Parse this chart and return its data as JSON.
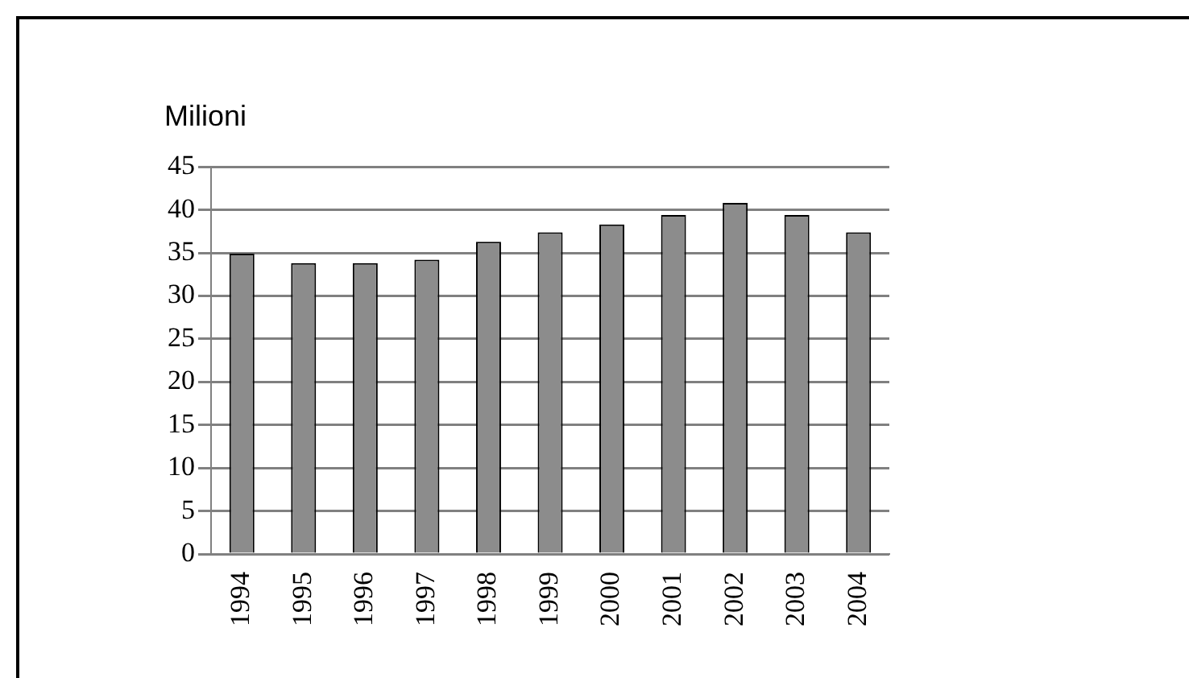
{
  "chart_data": {
    "type": "bar",
    "title": "Milioni",
    "categories": [
      "1994",
      "1995",
      "1996",
      "1997",
      "1998",
      "1999",
      "2000",
      "2001",
      "2002",
      "2003",
      "2004"
    ],
    "values": [
      34.9,
      33.8,
      33.8,
      34.2,
      36.3,
      37.4,
      38.3,
      39.4,
      40.8,
      39.4,
      37.4
    ],
    "color": "#8c8c8c",
    "ylim": [
      0,
      45
    ],
    "yticks": [
      0,
      5,
      10,
      15,
      20,
      25,
      30,
      35,
      40,
      45
    ],
    "grid": "y",
    "legend": false
  }
}
